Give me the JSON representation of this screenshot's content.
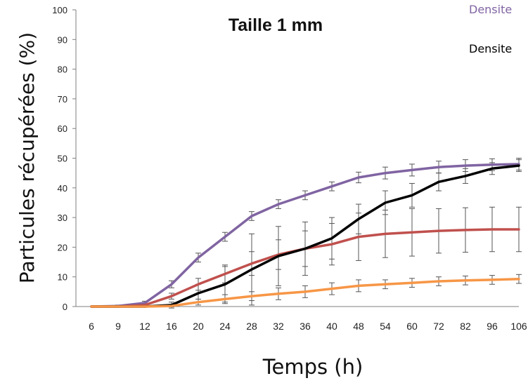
{
  "chart_data": {
    "type": "line",
    "title": "Taille 1 mm",
    "xlabel": "Temps (h)",
    "ylabel": "Particules récupérées (%)",
    "categories": [
      "6",
      "9",
      "12",
      "16",
      "20",
      "24",
      "28",
      "32",
      "36",
      "40",
      "48",
      "54",
      "60",
      "72",
      "82",
      "96",
      "106"
    ],
    "ylim": [
      0,
      100
    ],
    "yticks": [
      "0",
      "10",
      "20",
      "30",
      "40",
      "50",
      "60",
      "70",
      "80",
      "90",
      "100"
    ],
    "grid": false,
    "legend_position": "top-right",
    "legend": [
      "Densite",
      "Densite"
    ],
    "series": [
      {
        "color": "#8064A2",
        "values": [
          0,
          0.2,
          1.2,
          7.5,
          16.5,
          23.5,
          30.5,
          34.5,
          37.5,
          40.5,
          43.5,
          45,
          46,
          47,
          47.5,
          47.8,
          48
        ],
        "errors": [
          0,
          0.3,
          0.6,
          1.2,
          1.5,
          1.5,
          1.5,
          1.5,
          1.5,
          1.5,
          1.8,
          2,
          2,
          2,
          2,
          2,
          2
        ]
      },
      {
        "color": "#C0504D",
        "values": [
          0,
          0,
          0.5,
          3.5,
          7.5,
          11,
          14.5,
          17.5,
          19.5,
          21,
          23.5,
          24.5,
          25,
          25.5,
          25.8,
          26,
          26
        ],
        "errors": [
          0,
          0,
          0.3,
          1,
          2,
          3,
          4,
          5,
          6,
          7,
          8,
          8,
          8,
          7.5,
          7.5,
          7.5,
          7.5
        ]
      },
      {
        "color": "#000000",
        "values": [
          0,
          0,
          0,
          0.5,
          4.5,
          7.5,
          12.5,
          17,
          19.5,
          23,
          29.5,
          35,
          37.5,
          42,
          44,
          46.5,
          47.5
        ],
        "errors": [
          0,
          0,
          0,
          1,
          3,
          6,
          12,
          10,
          9,
          7,
          5,
          4,
          4,
          3,
          2.5,
          2,
          2
        ]
      },
      {
        "color": "#F79646",
        "values": [
          0,
          0,
          0,
          0.2,
          1.5,
          2.5,
          3.5,
          4.3,
          5,
          6,
          7,
          7.5,
          8,
          8.5,
          8.8,
          9,
          9.3
        ],
        "errors": [
          0,
          0,
          0,
          0.3,
          1,
          1.5,
          1.5,
          2,
          2,
          2,
          2,
          1.5,
          1.5,
          1.5,
          1.5,
          1.5,
          1.5
        ]
      }
    ]
  },
  "legend_colors": [
    "#8064A2",
    "#000000"
  ]
}
